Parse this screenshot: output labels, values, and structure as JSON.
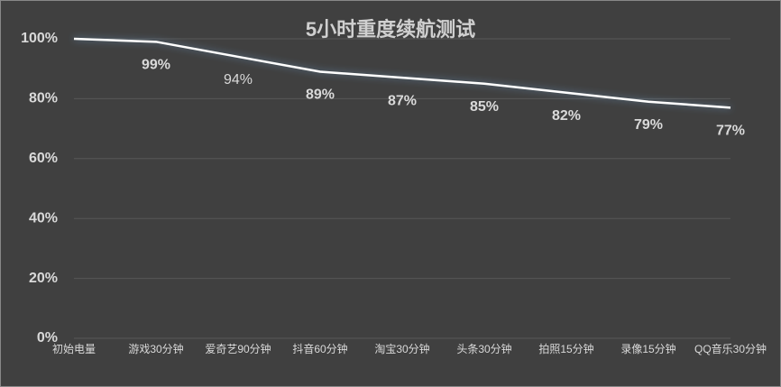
{
  "chart_data": {
    "type": "line",
    "title": "5小时重度续航测试",
    "categories": [
      "初始电量",
      "游戏30分钟",
      "爱奇艺90分钟",
      "抖音60分钟",
      "淘宝30分钟",
      "头条30分钟",
      "拍照15分钟",
      "录像15分钟",
      "QQ音乐30分钟"
    ],
    "values": [
      100,
      99,
      94,
      89,
      87,
      85,
      82,
      79,
      77
    ],
    "value_labels": [
      null,
      "99%",
      "94%",
      "89%",
      "87%",
      "85%",
      "82%",
      "79%",
      "77%"
    ],
    "color": "#ffffff",
    "ylim": [
      0,
      100
    ],
    "yticks": [
      {
        "value": 0,
        "label": "0%"
      },
      {
        "value": 20,
        "label": "20%"
      },
      {
        "value": 40,
        "label": "40%"
      },
      {
        "value": 60,
        "label": "60%"
      },
      {
        "value": 80,
        "label": "80%"
      },
      {
        "value": 100,
        "label": "100%"
      }
    ],
    "grid": true
  }
}
